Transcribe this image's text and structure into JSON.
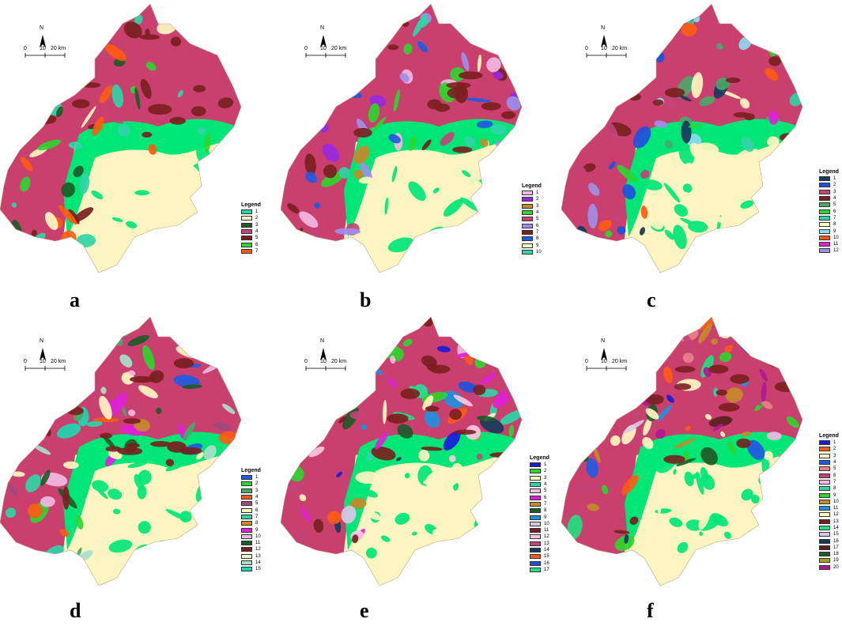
{
  "north_label": "N",
  "scale": {
    "t0": "0",
    "t1": "10",
    "t2": "20 km"
  },
  "legend_title": "Legend",
  "panels": [
    {
      "label": "a",
      "main": "#c9406f",
      "plain": "#fdf5c1",
      "mid": "#00e676",
      "legend": [
        {
          "label": "1",
          "color": "#2fd5a6"
        },
        {
          "label": "2",
          "color": "#fff7c2"
        },
        {
          "label": "3",
          "color": "#1f5a29"
        },
        {
          "label": "4",
          "color": "#c44275"
        },
        {
          "label": "5",
          "color": "#7a1f1f"
        },
        {
          "label": "6",
          "color": "#2ed52e"
        },
        {
          "label": "7",
          "color": "#ff5a14"
        }
      ]
    },
    {
      "label": "b",
      "main": "#c9406f",
      "plain": "#fdf5c1",
      "mid": "#00e676",
      "legend": [
        {
          "label": "1",
          "color": "#f3b9e2"
        },
        {
          "label": "2",
          "color": "#9a27e0"
        },
        {
          "label": "3",
          "color": "#c58a2a"
        },
        {
          "label": "4",
          "color": "#2ed52e"
        },
        {
          "label": "5",
          "color": "#c44275"
        },
        {
          "label": "6",
          "color": "#9e8fe8"
        },
        {
          "label": "7",
          "color": "#7a1f1f"
        },
        {
          "label": "8",
          "color": "#1f5ae0"
        },
        {
          "label": "9",
          "color": "#fff7c2"
        },
        {
          "label": "10",
          "color": "#2fd5a6"
        }
      ]
    },
    {
      "label": "c",
      "main": "#c9406f",
      "plain": "#fdf5c1",
      "mid": "#00e676",
      "legend": [
        {
          "label": "1",
          "color": "#163a5c"
        },
        {
          "label": "2",
          "color": "#1f4fe0"
        },
        {
          "label": "3",
          "color": "#c44275"
        },
        {
          "label": "4",
          "color": "#7a1f1f"
        },
        {
          "label": "5",
          "color": "#4aa86a"
        },
        {
          "label": "6",
          "color": "#2ed52e"
        },
        {
          "label": "7",
          "color": "#2fd5a6"
        },
        {
          "label": "8",
          "color": "#fff7c2"
        },
        {
          "label": "9",
          "color": "#8fd8f0"
        },
        {
          "label": "10",
          "color": "#ff5a14"
        },
        {
          "label": "11",
          "color": "#e020d8"
        },
        {
          "label": "12",
          "color": "#9e8fe8"
        }
      ]
    },
    {
      "label": "d",
      "main": "#c9406f",
      "plain": "#fdf5c1",
      "mid": "#00e676",
      "legend": [
        {
          "label": "1",
          "color": "#1f5ae0"
        },
        {
          "label": "2",
          "color": "#2ed52e"
        },
        {
          "label": "3",
          "color": "#4aa86a"
        },
        {
          "label": "4",
          "color": "#ff5a14"
        },
        {
          "label": "5",
          "color": "#9e4a7a"
        },
        {
          "label": "6",
          "color": "#fff7c2"
        },
        {
          "label": "7",
          "color": "#2fd5a6"
        },
        {
          "label": "8",
          "color": "#c58a2a"
        },
        {
          "label": "9",
          "color": "#e020d8"
        },
        {
          "label": "10",
          "color": "#f3b9e2"
        },
        {
          "label": "11",
          "color": "#1f5a29"
        },
        {
          "label": "12",
          "color": "#7a1f1f"
        },
        {
          "label": "13",
          "color": "#fff7c2"
        },
        {
          "label": "14",
          "color": "#a8e0cc"
        },
        {
          "label": "15",
          "color": "#1fd5b0"
        }
      ]
    },
    {
      "label": "e",
      "main": "#c9406f",
      "plain": "#fdf5c1",
      "mid": "#00e676",
      "legend": [
        {
          "label": "1",
          "color": "#1a1ae0"
        },
        {
          "label": "2",
          "color": "#2ed52e"
        },
        {
          "label": "3",
          "color": "#fff7c2"
        },
        {
          "label": "4",
          "color": "#2fd5a6"
        },
        {
          "label": "5",
          "color": "#f3b9e2"
        },
        {
          "label": "6",
          "color": "#e020d8"
        },
        {
          "label": "7",
          "color": "#c58a2a"
        },
        {
          "label": "8",
          "color": "#1f5a29"
        },
        {
          "label": "9",
          "color": "#1f90e0"
        },
        {
          "label": "10",
          "color": "#d8c8e8"
        },
        {
          "label": "11",
          "color": "#7a1f1f"
        },
        {
          "label": "12",
          "color": "#f8c8e0"
        },
        {
          "label": "13",
          "color": "#c44275"
        },
        {
          "label": "14",
          "color": "#163a5c"
        },
        {
          "label": "15",
          "color": "#ff5a14"
        },
        {
          "label": "16",
          "color": "#1f4fe0"
        },
        {
          "label": "17",
          "color": "#1fe080"
        }
      ]
    },
    {
      "label": "f",
      "main": "#c9406f",
      "plain": "#fdf5c1",
      "mid": "#00e676",
      "legend": [
        {
          "label": "1",
          "color": "#1a1ae0"
        },
        {
          "label": "2",
          "color": "#ff5a14"
        },
        {
          "label": "3",
          "color": "#fff7c2"
        },
        {
          "label": "4",
          "color": "#1f5ae0"
        },
        {
          "label": "5",
          "color": "#e8808a"
        },
        {
          "label": "6",
          "color": "#c44275"
        },
        {
          "label": "7",
          "color": "#f3b9e2"
        },
        {
          "label": "8",
          "color": "#2fd5a6"
        },
        {
          "label": "9",
          "color": "#2ed52e"
        },
        {
          "label": "10",
          "color": "#c58a2a"
        },
        {
          "label": "11",
          "color": "#1f90e0"
        },
        {
          "label": "12",
          "color": "#fff7c2"
        },
        {
          "label": "13",
          "color": "#7a1f1f"
        },
        {
          "label": "14",
          "color": "#1fe080"
        },
        {
          "label": "15",
          "color": "#d8c8e8"
        },
        {
          "label": "16",
          "color": "#163a5c"
        },
        {
          "label": "17",
          "color": "#5a1f1f"
        },
        {
          "label": "18",
          "color": "#1f5a29"
        },
        {
          "label": "19",
          "color": "#a0a020"
        },
        {
          "label": "20",
          "color": "#b01890"
        }
      ]
    }
  ]
}
